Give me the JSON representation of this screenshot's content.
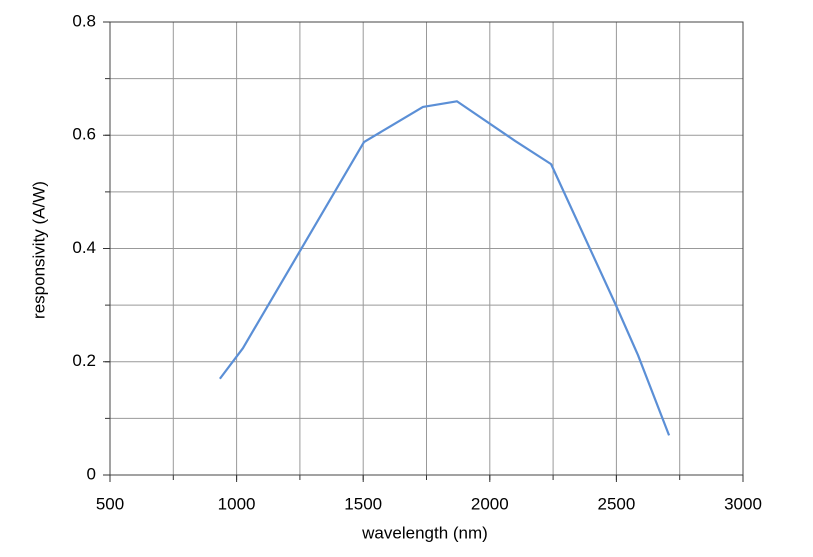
{
  "chart_data": {
    "type": "line",
    "x_label": "wavelength (nm)",
    "y_label": "responsivity (A/W)",
    "xlim": [
      500,
      3000
    ],
    "xticks": [
      500,
      1000,
      1500,
      2000,
      2500,
      3000
    ],
    "ylim": [
      0,
      0.8
    ],
    "yticks": [
      0,
      0.2,
      0.4,
      0.6,
      0.8
    ],
    "xgrid": [
      750,
      1000,
      1250,
      1500,
      1750,
      2000,
      2250,
      2500,
      2750
    ],
    "ygrid": [
      0.1,
      0.2,
      0.3,
      0.4,
      0.5,
      0.6,
      0.7
    ],
    "grid": true,
    "series": [
      {
        "color": "#5b8fd6",
        "x": [
          934,
          1025,
          1503,
          1736,
          1870,
          2100,
          2242,
          2498,
          2585,
          2708
        ],
        "values": [
          0.17,
          0.224,
          0.588,
          0.65,
          0.66,
          0.59,
          0.549,
          0.3,
          0.212,
          0.07
        ]
      }
    ]
  }
}
